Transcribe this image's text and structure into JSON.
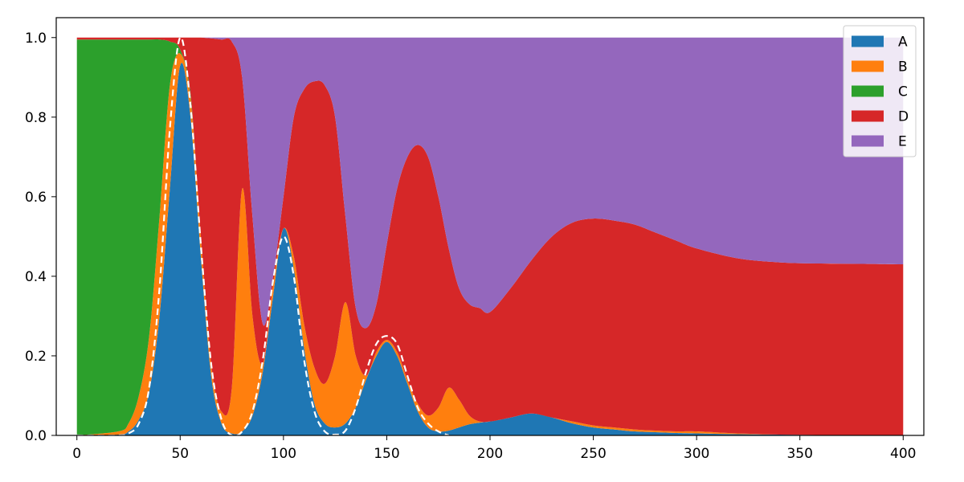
{
  "chart_data": {
    "type": "area",
    "stacked": true,
    "normalized": true,
    "x_range": [
      0,
      400
    ],
    "xlim": [
      -10,
      410
    ],
    "ylim": [
      0,
      1.05
    ],
    "x_ticks": [
      "0",
      "50",
      "100",
      "150",
      "200",
      "250",
      "300",
      "350",
      "400"
    ],
    "y_ticks": [
      "0.0",
      "0.2",
      "0.4",
      "0.6",
      "0.8",
      "1.0"
    ],
    "grid": false,
    "legend_position": "top-right",
    "series": [
      {
        "name": "A",
        "color": "#1f77b4"
      },
      {
        "name": "B",
        "color": "#ff7f0e"
      },
      {
        "name": "C",
        "color": "#2ca02c"
      },
      {
        "name": "D",
        "color": "#d62728"
      },
      {
        "name": "E",
        "color": "#9467bd"
      }
    ],
    "cumulative_boundaries": {
      "x": [
        0,
        20,
        25,
        30,
        35,
        40,
        45,
        50,
        55,
        60,
        65,
        70,
        75,
        80,
        85,
        90,
        95,
        100,
        105,
        110,
        115,
        120,
        125,
        130,
        135,
        140,
        145,
        150,
        155,
        160,
        165,
        170,
        175,
        180,
        185,
        190,
        195,
        200,
        210,
        220,
        230,
        240,
        250,
        260,
        270,
        280,
        290,
        300,
        320,
        340,
        360,
        380,
        400
      ],
      "A": [
        0,
        0.002,
        0.01,
        0.04,
        0.11,
        0.3,
        0.62,
        0.93,
        0.8,
        0.45,
        0.15,
        0.03,
        0.005,
        0.01,
        0.05,
        0.16,
        0.35,
        0.52,
        0.42,
        0.22,
        0.08,
        0.03,
        0.02,
        0.03,
        0.07,
        0.14,
        0.2,
        0.235,
        0.2,
        0.13,
        0.06,
        0.02,
        0.01,
        0.012,
        0.02,
        0.028,
        0.032,
        0.035,
        0.045,
        0.055,
        0.045,
        0.03,
        0.02,
        0.015,
        0.01,
        0.008,
        0.006,
        0.005,
        0.003,
        0.002,
        0.001,
        0.0005,
        0
      ],
      "B": [
        0,
        0.01,
        0.03,
        0.1,
        0.25,
        0.55,
        0.88,
        0.96,
        0.85,
        0.5,
        0.18,
        0.06,
        0.12,
        0.62,
        0.3,
        0.18,
        0.38,
        0.52,
        0.45,
        0.28,
        0.17,
        0.13,
        0.2,
        0.335,
        0.2,
        0.15,
        0.21,
        0.24,
        0.21,
        0.14,
        0.08,
        0.05,
        0.07,
        0.12,
        0.09,
        0.05,
        0.035,
        0.035,
        0.045,
        0.055,
        0.045,
        0.035,
        0.025,
        0.02,
        0.015,
        0.012,
        0.01,
        0.01,
        0.005,
        0.002,
        0.001,
        0.0005,
        0
      ],
      "C": [
        0.995,
        0.995,
        0.995,
        0.995,
        0.995,
        0.995,
        0.99,
        0.97,
        0.86,
        0.5,
        0.18,
        0.06,
        0.12,
        0.62,
        0.3,
        0.18,
        0.38,
        0.52,
        0.45,
        0.28,
        0.17,
        0.13,
        0.2,
        0.335,
        0.2,
        0.15,
        0.21,
        0.24,
        0.21,
        0.14,
        0.08,
        0.05,
        0.07,
        0.12,
        0.09,
        0.05,
        0.035,
        0.035,
        0.045,
        0.055,
        0.045,
        0.035,
        0.025,
        0.02,
        0.015,
        0.012,
        0.01,
        0.01,
        0.005,
        0.002,
        0.001,
        0.0005,
        0
      ],
      "D": [
        1.0,
        1.0,
        1.0,
        1.0,
        1.0,
        1.0,
        1.0,
        1.0,
        1.0,
        1.0,
        0.998,
        0.995,
        0.99,
        0.9,
        0.55,
        0.28,
        0.4,
        0.6,
        0.8,
        0.87,
        0.89,
        0.88,
        0.8,
        0.55,
        0.32,
        0.27,
        0.33,
        0.48,
        0.62,
        0.7,
        0.73,
        0.7,
        0.6,
        0.47,
        0.37,
        0.33,
        0.32,
        0.31,
        0.37,
        0.44,
        0.5,
        0.535,
        0.545,
        0.54,
        0.53,
        0.51,
        0.49,
        0.47,
        0.445,
        0.435,
        0.432,
        0.431,
        0.43
      ]
    },
    "peak_envelope": {
      "x": [
        0,
        20,
        25,
        30,
        35,
        40,
        45,
        50,
        55,
        60,
        65,
        70,
        75,
        80,
        85,
        90,
        95,
        100,
        105,
        110,
        115,
        120,
        125,
        130,
        135,
        140,
        145,
        150,
        155,
        160,
        165,
        170,
        175,
        180
      ],
      "y": [
        0,
        0,
        0.005,
        0.03,
        0.12,
        0.37,
        0.77,
        1.0,
        0.83,
        0.48,
        0.18,
        0.04,
        0.0,
        0.01,
        0.06,
        0.19,
        0.39,
        0.5,
        0.4,
        0.19,
        0.06,
        0.01,
        0.002,
        0.012,
        0.07,
        0.16,
        0.23,
        0.25,
        0.23,
        0.15,
        0.07,
        0.03,
        0.01,
        0
      ]
    }
  }
}
